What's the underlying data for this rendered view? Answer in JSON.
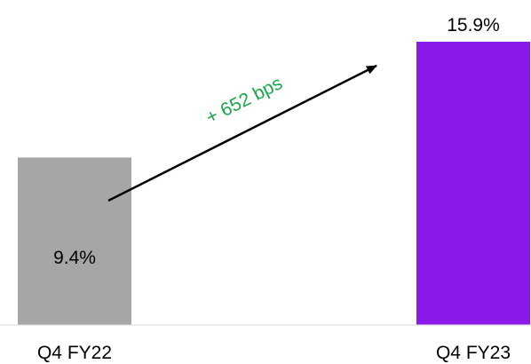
{
  "chart_data": {
    "type": "bar",
    "categories": [
      "Q4 FY22",
      "Q4 FY23"
    ],
    "values": [
      9.4,
      15.9
    ],
    "data_labels": [
      "9.4%",
      "15.9%"
    ],
    "bar_colors": [
      "#a6a6a6",
      "#8b1ae8"
    ],
    "title": "",
    "xlabel": "",
    "ylabel": "",
    "ylim": [
      0,
      15.9
    ],
    "grid": false,
    "legend": "none",
    "annotation": {
      "text": "+ 652 bps",
      "color": "#1aa84a",
      "arrow": "from Q4 FY22 bar up to Q4 FY23 bar"
    }
  },
  "colors": {
    "axis": "#d9d9d9",
    "text": "#000000",
    "arrow": "#000000"
  }
}
